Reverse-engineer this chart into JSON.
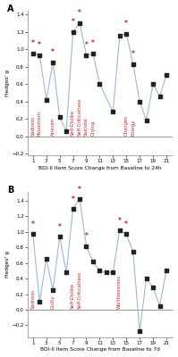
{
  "panel_a": {
    "title": "A",
    "xlabel": "BDI-II Item Score Change from Baseline to 24h",
    "ylabel": "Hedges' g",
    "x": [
      1,
      2,
      3,
      4,
      5,
      6,
      7,
      8,
      9,
      10,
      11,
      13,
      14,
      15,
      16,
      17,
      18,
      19,
      20,
      21
    ],
    "y": [
      0.95,
      0.93,
      0.42,
      0.85,
      0.22,
      0.06,
      1.2,
      1.3,
      0.93,
      0.95,
      0.6,
      0.28,
      1.15,
      1.18,
      0.83,
      0.4,
      0.18,
      0.6,
      0.46,
      0.7
    ],
    "star_x": [
      1,
      2,
      4,
      7,
      8,
      9,
      10,
      15,
      16
    ],
    "star_y": [
      1.02,
      1.0,
      0.92,
      1.27,
      1.37,
      1.0,
      1.02,
      1.25,
      0.9
    ],
    "labels": [
      {
        "x": 1,
        "text": "Sadness"
      },
      {
        "x": 2,
        "text": "Pessimism"
      },
      {
        "x": 4,
        "text": "Anxium"
      },
      {
        "x": 7,
        "text": "Self-Dislike"
      },
      {
        "x": 8,
        "text": "Self-Criticalness"
      },
      {
        "x": 9,
        "text": "Suicidal"
      },
      {
        "x": 10,
        "text": "Crying"
      },
      {
        "x": 15,
        "text": "Changes"
      },
      {
        "x": 16,
        "text": "Energy"
      }
    ],
    "ylim": [
      -0.22,
      1.45
    ],
    "yticks": [
      -0.2,
      0.0,
      0.2,
      0.4,
      0.6,
      0.8,
      1.0,
      1.2,
      1.4
    ],
    "xticks": [
      1,
      3,
      5,
      7,
      9,
      11,
      13,
      15,
      17,
      19,
      21
    ]
  },
  "panel_b": {
    "title": "B",
    "xlabel": "BDI-II Item Score Change from Baseline to 7d",
    "ylabel": "Hedges' g",
    "x": [
      1,
      2,
      3,
      4,
      5,
      6,
      7,
      8,
      9,
      10,
      11,
      12,
      13,
      14,
      15,
      16,
      17,
      18,
      19,
      20,
      21
    ],
    "y": [
      0.97,
      0.1,
      0.65,
      0.25,
      0.94,
      0.48,
      1.3,
      1.42,
      0.82,
      0.62,
      0.5,
      0.48,
      0.48,
      1.02,
      0.97,
      0.75,
      -0.28,
      0.4,
      0.29,
      0.05,
      0.5
    ],
    "star_x": [
      1,
      5,
      7,
      8,
      9,
      14,
      15
    ],
    "star_y": [
      1.04,
      1.01,
      1.37,
      1.49,
      0.89,
      1.09,
      1.04
    ],
    "labels": [
      {
        "x": 1,
        "text": "Sadness"
      },
      {
        "x": 4,
        "text": "Guilty"
      },
      {
        "x": 7,
        "text": "Self-Dislike"
      },
      {
        "x": 8,
        "text": "Self-Criticalness"
      },
      {
        "x": 14,
        "text": "Worthlessness"
      }
    ],
    "ylim": [
      -0.35,
      1.52
    ],
    "yticks": [
      -0.2,
      0.0,
      0.2,
      0.4,
      0.6,
      0.8,
      1.0,
      1.2,
      1.4
    ],
    "xticks": [
      1,
      3,
      5,
      7,
      9,
      11,
      13,
      15,
      17,
      19,
      21
    ]
  },
  "line_color": "#99bbcc",
  "dot_color": "#222222",
  "star_color": "#cc2222",
  "label_color": "#cc2222",
  "zero_line_color": "#888888",
  "background": "#ffffff",
  "dot_size": 7,
  "star_fontsize": 5.5,
  "line_width": 0.8,
  "fontsize_label": 4.2,
  "fontsize_title": 7,
  "fontsize_ticks": 4.0,
  "fontsize_annot": 3.8
}
